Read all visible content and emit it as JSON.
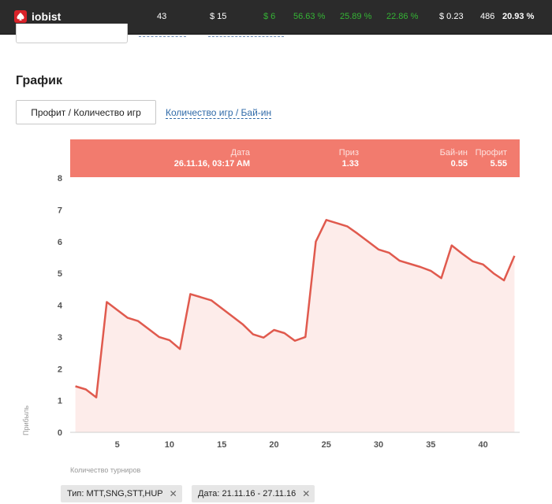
{
  "topbar": {
    "brand": "iobist",
    "stats": [
      "43",
      "$ 15",
      "$ 6",
      "56.63 %",
      "25.89 %",
      "22.86 %",
      "$ 0.23",
      "486",
      "20.93 %"
    ]
  },
  "graph": {
    "title": "График",
    "tab_active": "Профит / Количество игр",
    "tab_link": "Количество игр / Бай-ин"
  },
  "tooltip": {
    "date_label": "Дата",
    "date_value": "26.11.16, 03:17 AM",
    "prize_label": "Приз",
    "prize_value": "1.33",
    "buyin_label": "Бай-ин",
    "buyin_value": "0.55",
    "profit_label": "Профит",
    "profit_value": "5.55"
  },
  "chart_data": {
    "type": "area",
    "xlabel": "Количество турниров",
    "ylabel": "Прибыль",
    "x_ticks": [
      "5",
      "10",
      "15",
      "20",
      "25",
      "30",
      "35",
      "40"
    ],
    "y_ticks": [
      "0",
      "1",
      "2",
      "3",
      "4",
      "5",
      "6",
      "7",
      "8"
    ],
    "xlim": [
      0.5,
      43.5
    ],
    "ylim": [
      0,
      8
    ],
    "x": [
      1,
      2,
      3,
      4,
      5,
      6,
      7,
      8,
      9,
      10,
      11,
      12,
      13,
      14,
      15,
      16,
      17,
      18,
      19,
      20,
      21,
      22,
      23,
      24,
      25,
      26,
      27,
      28,
      29,
      30,
      31,
      32,
      33,
      34,
      35,
      36,
      37,
      38,
      39,
      40,
      41,
      42,
      43
    ],
    "values": [
      1.45,
      1.35,
      1.1,
      4.1,
      3.85,
      3.6,
      3.5,
      3.25,
      3.0,
      2.9,
      2.62,
      4.35,
      4.25,
      4.15,
      3.9,
      3.65,
      3.4,
      3.08,
      2.98,
      3.22,
      3.12,
      2.88,
      3.0,
      6.0,
      6.68,
      6.58,
      6.48,
      6.25,
      6.0,
      5.75,
      5.65,
      5.4,
      5.3,
      5.2,
      5.08,
      4.85,
      5.88,
      5.62,
      5.38,
      5.28,
      5.0,
      4.78,
      5.55
    ],
    "line_color": "#e05a4e",
    "fill_color": "#fdecea"
  },
  "filters": [
    {
      "label": "Тип: MTT,SNG,STT,HUP",
      "close": "✕"
    },
    {
      "label": "Дата: 21.11.16 - 27.11.16",
      "close": "✕"
    }
  ]
}
